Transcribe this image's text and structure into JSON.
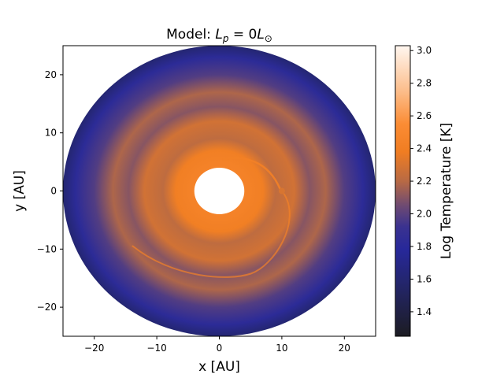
{
  "chart_data": {
    "type": "heatmap",
    "title_prefix": "Model: ",
    "title_math": {
      "symbol": "L",
      "subscript": "p",
      "rest": " = 0",
      "unit_symbol": "L",
      "unit_subscript": "⊙"
    },
    "xlabel": "x [AU]",
    "ylabel": "y [AU]",
    "xlim": [
      -25,
      25
    ],
    "ylim": [
      -25,
      25
    ],
    "xticks": [
      -20,
      -10,
      0,
      10,
      20
    ],
    "yticks": [
      -20,
      -10,
      0,
      10,
      20
    ],
    "xtick_labels": [
      "−20",
      "−10",
      "0",
      "10",
      "20"
    ],
    "ytick_labels": [
      "−20",
      "−10",
      "0",
      "10",
      "20"
    ],
    "colorbar": {
      "label": "Log Temperature  [K]",
      "range": [
        1.25,
        3.03
      ],
      "ticks": [
        1.4,
        1.6,
        1.8,
        2.0,
        2.2,
        2.4,
        2.6,
        2.8,
        3.0
      ],
      "tick_labels": [
        "1.4",
        "1.6",
        "1.8",
        "2.0",
        "2.2",
        "2.4",
        "2.6",
        "2.8",
        "3.0"
      ],
      "stops": [
        {
          "value": 1.25,
          "color": "#1c1c22"
        },
        {
          "value": 1.55,
          "color": "#232566"
        },
        {
          "value": 1.78,
          "color": "#27289a"
        },
        {
          "value": 1.92,
          "color": "#3a3290"
        },
        {
          "value": 2.05,
          "color": "#6e4a72"
        },
        {
          "value": 2.2,
          "color": "#b86a44"
        },
        {
          "value": 2.38,
          "color": "#f07d22"
        },
        {
          "value": 2.55,
          "color": "#fb8c34"
        },
        {
          "value": 2.75,
          "color": "#fcbd8a"
        },
        {
          "value": 3.03,
          "color": "#fff7f0"
        }
      ]
    },
    "disk": {
      "inner_radius_au": 4.0,
      "outer_radius_au": 25.0,
      "radial_profile": [
        {
          "r": 4.0,
          "logT": 2.45
        },
        {
          "r": 7.0,
          "logT": 2.4
        },
        {
          "r": 9.0,
          "logT": 2.22
        },
        {
          "r": 12.0,
          "logT": 2.28
        },
        {
          "r": 14.5,
          "logT": 2.1
        },
        {
          "r": 17.0,
          "logT": 2.18
        },
        {
          "r": 20.0,
          "logT": 1.98
        },
        {
          "r": 23.0,
          "logT": 1.82
        },
        {
          "r": 25.0,
          "logT": 1.6
        }
      ],
      "planet": {
        "x": 10.0,
        "y": 0.0,
        "logT": 2.3
      },
      "spiral_color_logT": 2.42
    }
  }
}
